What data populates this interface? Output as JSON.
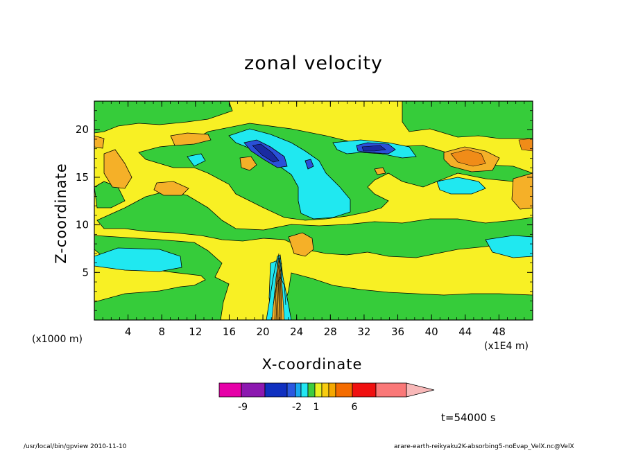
{
  "chart_data": {
    "type": "heatmap",
    "title": "zonal velocity",
    "xlabel": "X-coordinate",
    "ylabel": "Z-coordinate",
    "x_unit_note": "(x1000 m)",
    "x_scale_note": "(x1E4 m)",
    "xlim": [
      0,
      52
    ],
    "ylim": [
      0,
      23
    ],
    "x_ticks": [
      "4",
      "8",
      "12",
      "16",
      "20",
      "24",
      "28",
      "32",
      "36",
      "40",
      "44",
      "48"
    ],
    "y_ticks": [
      "5",
      "10",
      "15",
      "20"
    ],
    "colorbar": {
      "colors": [
        "#e600a8",
        "#8c18b0",
        "#1030c0",
        "#2a58e0",
        "#18a8f0",
        "#22e6f2",
        "#3ecc3e",
        "#e8f020",
        "#f8cc10",
        "#f5a800",
        "#f46c00",
        "#f01010",
        "#fa7878",
        "#f8b8b8"
      ],
      "tick_labels": [
        "-9",
        "-2",
        "1",
        "6"
      ]
    },
    "time_label": "t=54000 s",
    "field_legend": {
      "yellow": "#f8f024",
      "green": "#36cc3a",
      "cyan": "#20e8f0",
      "orange": "#f5b028",
      "blue": "#2a50d8",
      "navy": "#1a2aa0"
    },
    "footer_left": "/usr/local/bin/gpview 2010-11-10",
    "footer_right": "arare-earth-reikyaku2K-absorbing5-noEvap_VelX.nc@VelX"
  }
}
